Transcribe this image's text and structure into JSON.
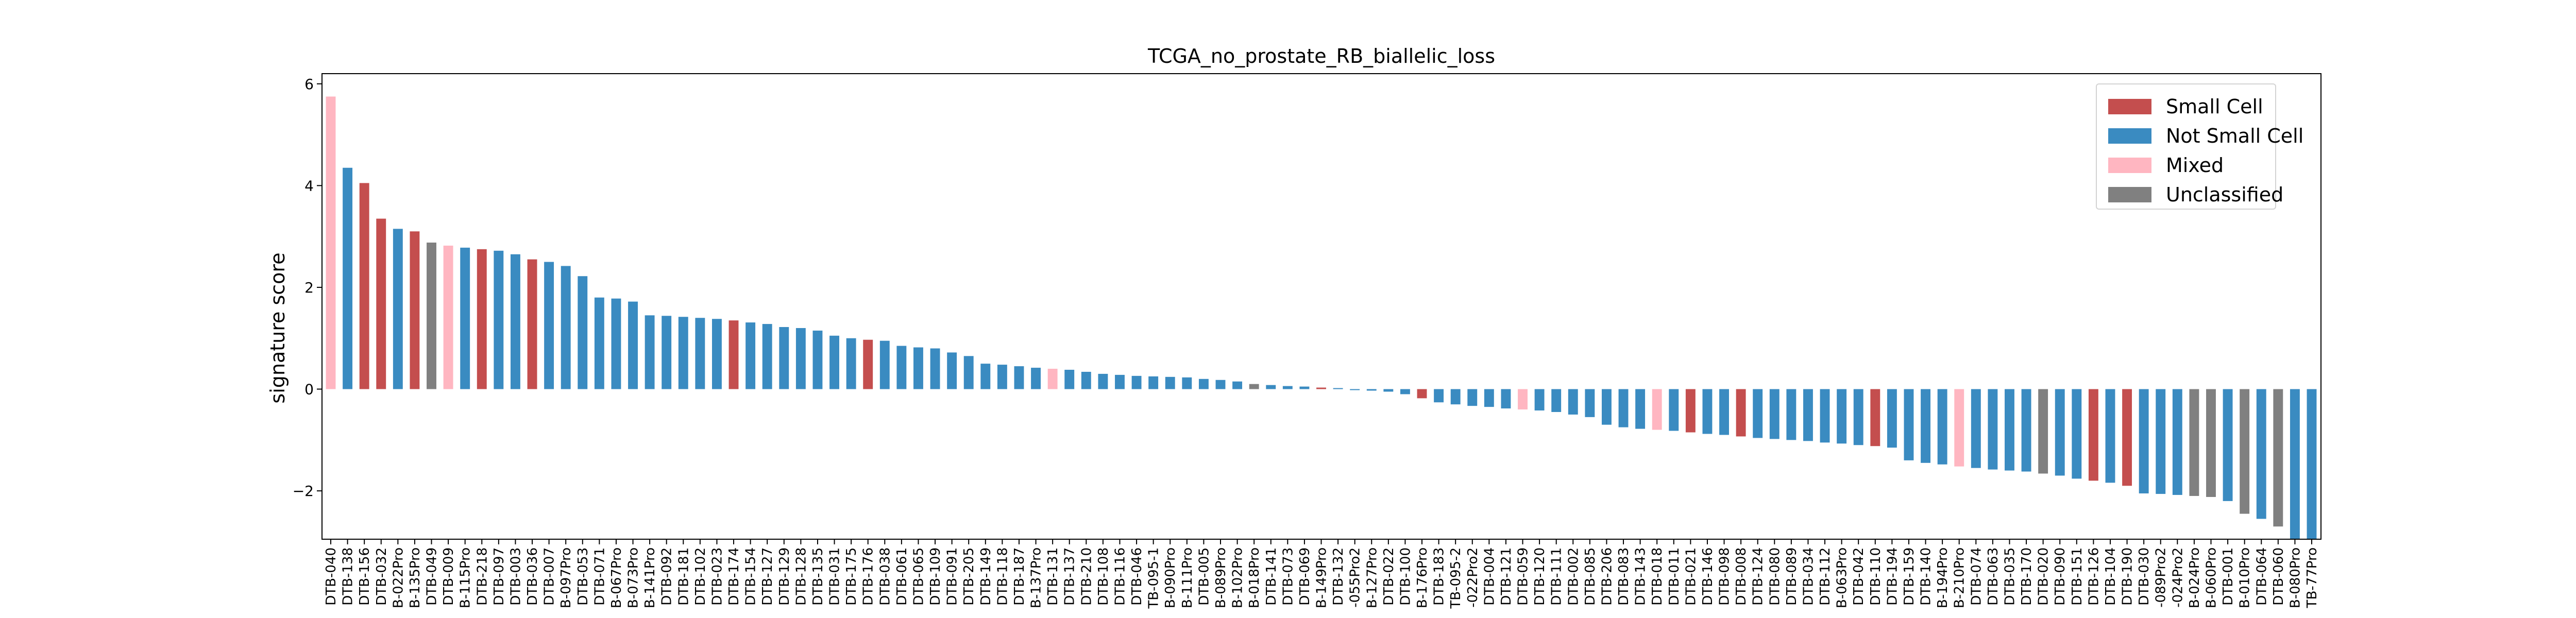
{
  "chart_data": {
    "type": "bar",
    "title": "TCGA_no_prostate_RB_biallelic_loss",
    "xlabel": "",
    "ylabel": "signature score",
    "ylim": [
      -2.95,
      6.2
    ],
    "yticks": [
      -2,
      0,
      2,
      4,
      6
    ],
    "ytick_labels": [
      "−2",
      "0",
      "2",
      "4",
      "6"
    ],
    "grid": false,
    "legend_position": "top-right",
    "legend": [
      {
        "name": "Small Cell",
        "color": "#c44e4e"
      },
      {
        "name": "Not Small Cell",
        "color": "#3a8bc1"
      },
      {
        "name": "Mixed",
        "color": "#ffb6c1"
      },
      {
        "name": "Unclassified",
        "color": "#808080"
      }
    ],
    "class_colors": {
      "S": "#c44e4e",
      "N": "#3a8bc1",
      "M": "#ffb6c1",
      "U": "#808080"
    },
    "categories": [
      "DTB-040",
      "DTB-138",
      "DTB-156",
      "DTB-032",
      "B-022Pro",
      "B-135Pro",
      "DTB-049",
      "DTB-009",
      "B-115Pro",
      "DTB-218",
      "DTB-097",
      "DTB-003",
      "DTB-036",
      "DTB-007",
      "B-097Pro",
      "DTB-053",
      "DTB-071",
      "B-067Pro",
      "B-073Pro",
      "B-141Pro",
      "DTB-092",
      "DTB-181",
      "DTB-102",
      "DTB-023",
      "DTB-174",
      "DTB-154",
      "DTB-127",
      "DTB-129",
      "DTB-128",
      "DTB-135",
      "DTB-031",
      "DTB-175",
      "DTB-176",
      "DTB-038",
      "DTB-061",
      "DTB-065",
      "DTB-109",
      "DTB-091",
      "DTB-205",
      "DTB-149",
      "DTB-118",
      "DTB-187",
      "B-137Pro",
      "DTB-131",
      "DTB-137",
      "DTB-210",
      "DTB-108",
      "DTB-116",
      "DTB-046",
      "TB-095-1",
      "B-090Pro",
      "B-111Pro",
      "DTB-005",
      "B-089Pro",
      "B-102Pro",
      "B-018Pro",
      "DTB-141",
      "DTB-073",
      "DTB-069",
      "B-149Pro",
      "DTB-132",
      "-055Pro2",
      "B-127Pro",
      "DTB-022",
      "DTB-100",
      "B-176Pro",
      "DTB-183",
      "TB-095-2",
      "-022Pro2",
      "DTB-004",
      "DTB-121",
      "DTB-059",
      "DTB-120",
      "DTB-111",
      "DTB-002",
      "DTB-085",
      "DTB-206",
      "DTB-083",
      "DTB-143",
      "DTB-018",
      "DTB-011",
      "DTB-021",
      "DTB-146",
      "DTB-098",
      "DTB-008",
      "DTB-124",
      "DTB-080",
      "DTB-089",
      "DTB-034",
      "DTB-112",
      "B-063Pro",
      "DTB-042",
      "DTB-110",
      "DTB-194",
      "DTB-159",
      "DTB-140",
      "B-194Pro",
      "B-210Pro",
      "DTB-074",
      "DTB-063",
      "DTB-035",
      "DTB-170",
      "DTB-020",
      "DTB-090",
      "DTB-151",
      "DTB-126",
      "DTB-104",
      "DTB-190",
      "DTB-030",
      "-089Pro2",
      "-024Pro2",
      "B-024Pro",
      "B-060Pro",
      "DTB-001",
      "B-010Pro",
      "DTB-064",
      "DTB-060",
      "B-080Pro",
      "TB-77Pro"
    ],
    "values": [
      5.75,
      4.35,
      4.05,
      3.35,
      3.15,
      3.1,
      2.88,
      2.82,
      2.78,
      2.75,
      2.72,
      2.65,
      2.55,
      2.5,
      2.42,
      2.22,
      1.8,
      1.78,
      1.72,
      1.45,
      1.44,
      1.42,
      1.4,
      1.38,
      1.35,
      1.31,
      1.28,
      1.22,
      1.2,
      1.15,
      1.05,
      1.0,
      0.97,
      0.95,
      0.85,
      0.82,
      0.8,
      0.72,
      0.65,
      0.5,
      0.48,
      0.45,
      0.42,
      0.4,
      0.38,
      0.34,
      0.3,
      0.28,
      0.26,
      0.25,
      0.24,
      0.23,
      0.2,
      0.18,
      0.15,
      0.1,
      0.08,
      0.06,
      0.05,
      0.03,
      0.02,
      -0.02,
      -0.03,
      -0.05,
      -0.1,
      -0.18,
      -0.26,
      -0.3,
      -0.33,
      -0.35,
      -0.38,
      -0.4,
      -0.42,
      -0.45,
      -0.5,
      -0.55,
      -0.7,
      -0.75,
      -0.78,
      -0.8,
      -0.82,
      -0.85,
      -0.88,
      -0.9,
      -0.93,
      -0.96,
      -0.98,
      -1.0,
      -1.02,
      -1.05,
      -1.07,
      -1.1,
      -1.12,
      -1.15,
      -1.4,
      -1.45,
      -1.48,
      -1.52,
      -1.55,
      -1.58,
      -1.6,
      -1.62,
      -1.66,
      -1.7,
      -1.76,
      -1.8,
      -1.84,
      -1.9,
      -2.05,
      -2.06,
      -2.08,
      -2.1,
      -2.12,
      -2.2,
      -2.45,
      -2.55,
      -2.7,
      -2.95,
      -2.95
    ],
    "classes": [
      "M",
      "N",
      "S",
      "S",
      "N",
      "S",
      "U",
      "M",
      "N",
      "S",
      "N",
      "N",
      "S",
      "N",
      "N",
      "N",
      "N",
      "N",
      "N",
      "N",
      "N",
      "N",
      "N",
      "N",
      "S",
      "N",
      "N",
      "N",
      "N",
      "N",
      "N",
      "N",
      "S",
      "N",
      "N",
      "N",
      "N",
      "N",
      "N",
      "N",
      "N",
      "N",
      "N",
      "M",
      "N",
      "N",
      "N",
      "N",
      "N",
      "N",
      "N",
      "N",
      "N",
      "N",
      "N",
      "U",
      "N",
      "N",
      "N",
      "S",
      "N",
      "N",
      "N",
      "N",
      "N",
      "S",
      "N",
      "N",
      "N",
      "N",
      "N",
      "M",
      "N",
      "N",
      "N",
      "N",
      "N",
      "N",
      "N",
      "M",
      "N",
      "S",
      "N",
      "N",
      "S",
      "N",
      "N",
      "N",
      "N",
      "N",
      "N",
      "N",
      "S",
      "N",
      "N",
      "N",
      "N",
      "M",
      "N",
      "N",
      "N",
      "N",
      "U",
      "N",
      "N",
      "S",
      "N",
      "S",
      "N",
      "N",
      "N",
      "U",
      "U",
      "N",
      "U",
      "N",
      "U",
      "N",
      "N"
    ]
  }
}
